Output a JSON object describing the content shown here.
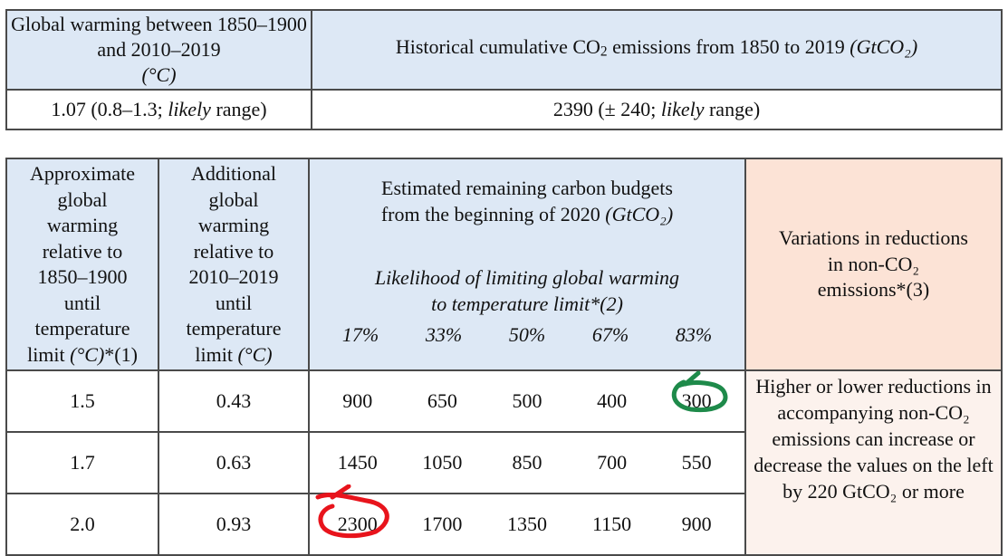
{
  "table1": {
    "headers": [
      {
        "text": "Global warming between 1850–1900 and 2010–2019",
        "unit": "(°C)"
      },
      {
        "text": "Historical cumulative CO",
        "sub": "2",
        "text2": " emissions from 1850 to 2019 ",
        "unit": "(GtCO₂)"
      }
    ],
    "values": [
      {
        "pre": "1.07 (0.8–1.3; ",
        "italic": "likely",
        "post": " range)"
      },
      {
        "pre": "2390 (± 240; ",
        "italic": "likely",
        "post": " range)"
      }
    ]
  },
  "table2": {
    "col1_header": {
      "lines": [
        "Approximate",
        "global",
        "warming",
        "relative to",
        "1850–1900",
        "until",
        "temperature"
      ],
      "last_pre": "limit ",
      "last_unit": "(°C)",
      "last_post": "*(1)"
    },
    "col2_header": {
      "lines": [
        "Additional",
        "global",
        "warming",
        "relative to",
        "2010–2019",
        "until",
        "temperature"
      ],
      "last_pre": "limit ",
      "last_unit": "(°C)"
    },
    "budget_header": {
      "line1": "Estimated remaining carbon budgets",
      "line2": "from the beginning of 2020 ",
      "unit": "(GtCO₂)",
      "likelihood_line1": "Likelihood of limiting global warming",
      "likelihood_line2": "to temperature limit*(2)"
    },
    "likelihoods": [
      "17%",
      "33%",
      "50%",
      "67%",
      "83%"
    ],
    "variations_header": {
      "line1": "Variations in reductions",
      "line2": "in non-CO₂",
      "line3": "emissions*(3)"
    },
    "rows": [
      {
        "warming": "1.5",
        "additional": "0.43",
        "budgets": [
          "900",
          "650",
          "500",
          "400",
          "300"
        ]
      },
      {
        "warming": "1.7",
        "additional": "0.63",
        "budgets": [
          "1450",
          "1050",
          "850",
          "700",
          "550"
        ]
      },
      {
        "warming": "2.0",
        "additional": "0.93",
        "budgets": [
          "2300",
          "1700",
          "1350",
          "1150",
          "900"
        ]
      }
    ],
    "variations_note": "Higher or lower reductions in accompanying non-CO₂ emissions can increase or decrease the values on the left by 220 GtCO₂ or more"
  },
  "annotations": {
    "green_circle": {
      "row": 0,
      "col": 4,
      "value": "300",
      "color": "#1e8a4a"
    },
    "red_circle": {
      "row": 2,
      "col": 0,
      "value": "2300",
      "color": "#e8141c"
    }
  }
}
